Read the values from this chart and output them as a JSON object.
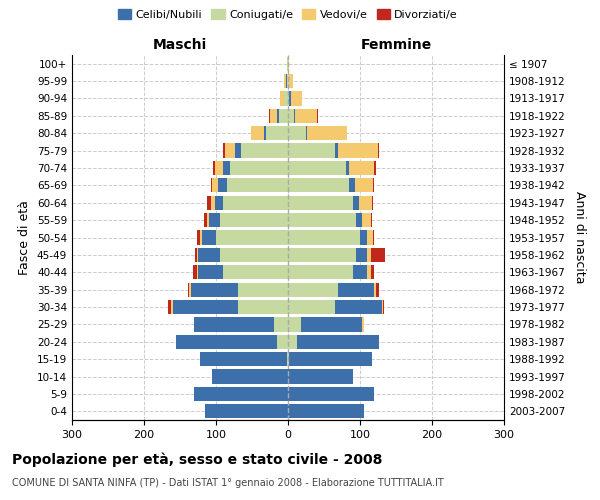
{
  "age_groups": [
    "0-4",
    "5-9",
    "10-14",
    "15-19",
    "20-24",
    "25-29",
    "30-34",
    "35-39",
    "40-44",
    "45-49",
    "50-54",
    "55-59",
    "60-64",
    "65-69",
    "70-74",
    "75-79",
    "80-84",
    "85-89",
    "90-94",
    "95-99",
    "100+"
  ],
  "birth_years": [
    "2003-2007",
    "1998-2002",
    "1993-1997",
    "1988-1992",
    "1983-1987",
    "1978-1982",
    "1973-1977",
    "1968-1972",
    "1963-1967",
    "1958-1962",
    "1953-1957",
    "1948-1952",
    "1943-1947",
    "1938-1942",
    "1933-1937",
    "1928-1932",
    "1923-1927",
    "1918-1922",
    "1913-1917",
    "1908-1912",
    "≤ 1907"
  ],
  "maschi": {
    "celibi": [
      115,
      130,
      105,
      120,
      140,
      110,
      90,
      65,
      35,
      30,
      20,
      15,
      12,
      12,
      10,
      8,
      3,
      3,
      1,
      1,
      0
    ],
    "coniugati": [
      0,
      0,
      0,
      2,
      15,
      20,
      70,
      70,
      90,
      95,
      100,
      95,
      90,
      85,
      80,
      65,
      30,
      12,
      5,
      2,
      1
    ],
    "vedovi": [
      0,
      0,
      0,
      0,
      0,
      0,
      2,
      2,
      2,
      2,
      2,
      2,
      5,
      8,
      12,
      15,
      18,
      10,
      5,
      2,
      1
    ],
    "divorziati": [
      0,
      0,
      0,
      0,
      0,
      0,
      5,
      2,
      5,
      2,
      5,
      5,
      5,
      2,
      2,
      2,
      0,
      2,
      0,
      0,
      0
    ]
  },
  "femmine": {
    "nubili": [
      105,
      120,
      90,
      115,
      115,
      85,
      65,
      50,
      20,
      15,
      10,
      8,
      8,
      8,
      5,
      5,
      2,
      2,
      2,
      1,
      0
    ],
    "coniugate": [
      0,
      0,
      0,
      2,
      12,
      18,
      65,
      70,
      90,
      95,
      100,
      95,
      90,
      85,
      80,
      65,
      25,
      8,
      2,
      1,
      0
    ],
    "vedove": [
      0,
      0,
      0,
      0,
      0,
      2,
      2,
      2,
      5,
      5,
      8,
      12,
      18,
      25,
      35,
      55,
      55,
      30,
      15,
      5,
      2
    ],
    "divorziate": [
      0,
      0,
      0,
      0,
      0,
      0,
      2,
      5,
      5,
      20,
      2,
      2,
      2,
      2,
      2,
      2,
      0,
      2,
      0,
      0,
      0
    ]
  },
  "colors": {
    "celibi": "#3d6faa",
    "coniugati": "#c5d9a0",
    "vedovi": "#f5c96e",
    "divorziati": "#c0281e"
  },
  "xlim": 300,
  "title": "Popolazione per età, sesso e stato civile - 2008",
  "subtitle": "COMUNE DI SANTA NINFA (TP) - Dati ISTAT 1° gennaio 2008 - Elaborazione TUTTITALIA.IT",
  "ylabel_left": "Fasce di età",
  "ylabel_right": "Anni di nascita",
  "legend_labels": [
    "Celibi/Nubili",
    "Coniugati/e",
    "Vedovi/e",
    "Divorziati/e"
  ]
}
